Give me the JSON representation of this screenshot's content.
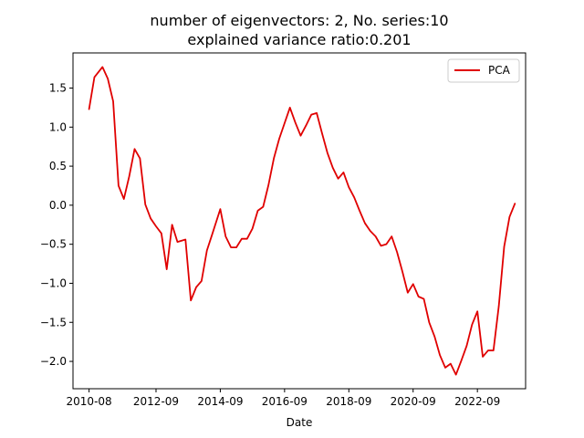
{
  "chart_data": {
    "type": "line",
    "title_line1": "number of eigenvectors: 2, No. series:10",
    "title_line2": "explained variance ratio:0.201",
    "xlabel": "Date",
    "ylabel": "",
    "x_ticks": [
      "2010-08",
      "2012-09",
      "2014-09",
      "2016-09",
      "2018-09",
      "2020-09",
      "2022-09"
    ],
    "y_ticks": [
      "1.5",
      "1.0",
      "0.5",
      "0.0",
      "−0.5",
      "−1.0",
      "−1.5",
      "−2.0"
    ],
    "y_tick_values": [
      1.5,
      1.0,
      0.5,
      0.0,
      -0.5,
      -1.0,
      -1.5,
      -2.0
    ],
    "ylim": [
      -2.35,
      1.95
    ],
    "xlim": [
      "2010-02",
      "2024-03"
    ],
    "grid": false,
    "legend_position": "top-right",
    "series": [
      {
        "name": "PCA",
        "color": "#e00000",
        "points": [
          [
            "2010-08",
            1.23
          ],
          [
            "2010-10",
            1.64
          ],
          [
            "2011-01",
            1.77
          ],
          [
            "2011-03",
            1.62
          ],
          [
            "2011-05",
            1.33
          ],
          [
            "2011-07",
            0.25
          ],
          [
            "2011-09",
            0.08
          ],
          [
            "2011-11",
            0.37
          ],
          [
            "2012-01",
            0.72
          ],
          [
            "2012-03",
            0.6
          ],
          [
            "2012-05",
            0.01
          ],
          [
            "2012-07",
            -0.17
          ],
          [
            "2012-09",
            -0.27
          ],
          [
            "2012-11",
            -0.36
          ],
          [
            "2013-01",
            -0.82
          ],
          [
            "2013-03",
            -0.25
          ],
          [
            "2013-05",
            -0.47
          ],
          [
            "2013-08",
            -0.44
          ],
          [
            "2013-10",
            -1.22
          ],
          [
            "2013-12",
            -1.05
          ],
          [
            "2014-02",
            -0.97
          ],
          [
            "2014-04",
            -0.58
          ],
          [
            "2014-06",
            -0.37
          ],
          [
            "2014-09",
            -0.05
          ],
          [
            "2014-11",
            -0.4
          ],
          [
            "2015-01",
            -0.54
          ],
          [
            "2015-03",
            -0.54
          ],
          [
            "2015-05",
            -0.43
          ],
          [
            "2015-07",
            -0.43
          ],
          [
            "2015-09",
            -0.3
          ],
          [
            "2015-11",
            -0.07
          ],
          [
            "2016-01",
            -0.02
          ],
          [
            "2016-03",
            0.26
          ],
          [
            "2016-05",
            0.6
          ],
          [
            "2016-07",
            0.85
          ],
          [
            "2016-09",
            1.05
          ],
          [
            "2016-11",
            1.25
          ],
          [
            "2017-01",
            1.06
          ],
          [
            "2017-03",
            0.89
          ],
          [
            "2017-05",
            1.02
          ],
          [
            "2017-07",
            1.16
          ],
          [
            "2017-09",
            1.18
          ],
          [
            "2017-11",
            0.92
          ],
          [
            "2018-01",
            0.67
          ],
          [
            "2018-03",
            0.48
          ],
          [
            "2018-05",
            0.34
          ],
          [
            "2018-07",
            0.42
          ],
          [
            "2018-09",
            0.23
          ],
          [
            "2018-11",
            0.1
          ],
          [
            "2019-01",
            -0.07
          ],
          [
            "2019-03",
            -0.23
          ],
          [
            "2019-05",
            -0.33
          ],
          [
            "2019-07",
            -0.4
          ],
          [
            "2019-09",
            -0.52
          ],
          [
            "2019-11",
            -0.5
          ],
          [
            "2020-01",
            -0.4
          ],
          [
            "2020-03",
            -0.6
          ],
          [
            "2020-05",
            -0.85
          ],
          [
            "2020-07",
            -1.12
          ],
          [
            "2020-09",
            -1.01
          ],
          [
            "2020-11",
            -1.17
          ],
          [
            "2021-01",
            -1.2
          ],
          [
            "2021-03",
            -1.5
          ],
          [
            "2021-05",
            -1.68
          ],
          [
            "2021-07",
            -1.92
          ],
          [
            "2021-09",
            -2.08
          ],
          [
            "2021-11",
            -2.03
          ],
          [
            "2022-01",
            -2.17
          ],
          [
            "2022-03",
            -1.99
          ],
          [
            "2022-05",
            -1.8
          ],
          [
            "2022-07",
            -1.53
          ],
          [
            "2022-09",
            -1.36
          ],
          [
            "2022-11",
            -1.94
          ],
          [
            "2023-01",
            -1.86
          ],
          [
            "2023-03",
            -1.86
          ],
          [
            "2023-05",
            -1.29
          ],
          [
            "2023-07",
            -0.53
          ],
          [
            "2023-09",
            -0.15
          ],
          [
            "2023-11",
            0.02
          ]
        ]
      }
    ]
  }
}
